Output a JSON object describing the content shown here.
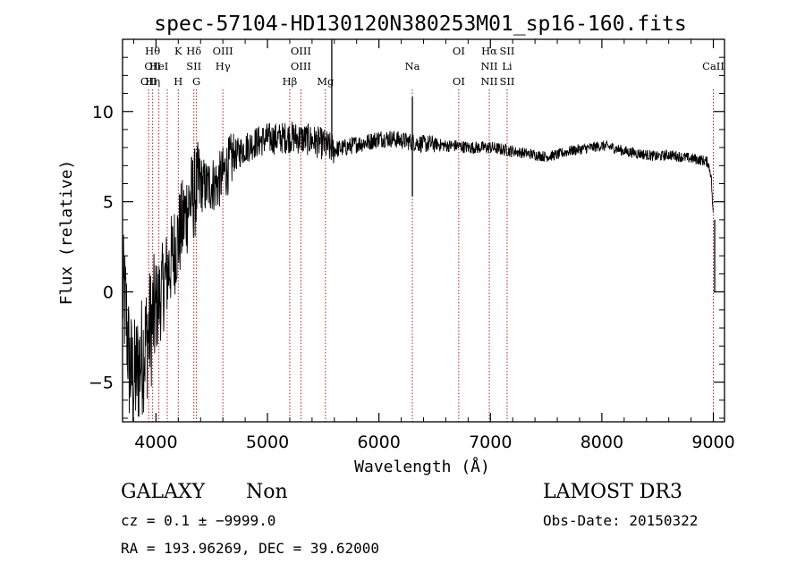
{
  "chart_data": {
    "type": "line",
    "title": "spec-57104-HD130120N380253M01_sp16-160.fits",
    "xlabel": "Wavelength (Å)",
    "ylabel": "Flux (relative)",
    "xlim": [
      3700,
      9100
    ],
    "ylim": [
      -7.2,
      14.0
    ],
    "x_ticks": [
      4000,
      5000,
      6000,
      7000,
      8000,
      9000
    ],
    "y_ticks": [
      -5,
      0,
      5,
      10
    ],
    "x_tick_labels": [
      "4000",
      "5000",
      "6000",
      "7000",
      "8000",
      "9000"
    ],
    "y_tick_labels": [
      "−5",
      "0",
      "5",
      "10"
    ],
    "line_color": "#000000",
    "marker_color": "#b02020",
    "series": [
      {
        "x": [
          3700,
          3730,
          3760,
          3800,
          3850,
          3900,
          3950,
          4000,
          4050,
          4100,
          4150,
          4200,
          4250,
          4300,
          4350,
          4400,
          4450,
          4500,
          4550,
          4600,
          4650,
          4700,
          4800,
          4900,
          5000,
          5100,
          5200,
          5300,
          5400,
          5500,
          5550,
          5600,
          5700,
          5800,
          5900,
          6000,
          6100,
          6200,
          6300,
          6400,
          6500,
          6600,
          6700,
          6800,
          6900,
          7000,
          7100,
          7200,
          7300,
          7400,
          7500,
          7600,
          7700,
          7800,
          7900,
          8000,
          8100,
          8200,
          8300,
          8400,
          8500,
          8600,
          8700,
          8800,
          8900,
          8950,
          8980,
          9000
        ],
        "y": [
          0,
          -1,
          -4,
          -5,
          -4,
          -3,
          -2,
          -1,
          0,
          1,
          2,
          3,
          4,
          5,
          5.5,
          6,
          5.8,
          6,
          6,
          6.5,
          7,
          7.5,
          8,
          8.3,
          8.5,
          8.5,
          8.6,
          8.5,
          8.4,
          8.2,
          8,
          7.9,
          8,
          8.2,
          8.3,
          8.5,
          8.5,
          8.4,
          8.3,
          8.2,
          8.2,
          8.1,
          8.1,
          8,
          8,
          8,
          7.9,
          7.8,
          7.7,
          7.6,
          7.5,
          7.6,
          7.8,
          7.9,
          8,
          8.1,
          8,
          7.8,
          7.7,
          7.6,
          7.5,
          7.6,
          7.5,
          7.4,
          7.3,
          7.2,
          6.5,
          4
        ]
      }
    ],
    "spikes": [
      {
        "x": 5577,
        "y": 14.0
      },
      {
        "x": 6300,
        "y": 10.8
      },
      {
        "x": 6300,
        "y": 5.3
      },
      {
        "x": 9012,
        "y": 0.0
      }
    ],
    "line_markers": [
      {
        "x": 3934,
        "labels": [
          "",
          "",
          "OII"
        ]
      },
      {
        "x": 3970,
        "labels": [
          "Hθ",
          "OII",
          "Hη"
        ]
      },
      {
        "x": 4026,
        "labels": [
          "",
          "HeI",
          ""
        ]
      },
      {
        "x": 4101,
        "labels": [
          "",
          "",
          ""
        ]
      },
      {
        "x": 4200,
        "labels": [
          "K",
          "",
          "H"
        ]
      },
      {
        "x": 4340,
        "labels": [
          "Hδ",
          "SII",
          ""
        ]
      },
      {
        "x": 4363,
        "labels": [
          "",
          "",
          "G"
        ]
      },
      {
        "x": 4600,
        "labels": [
          "OIII",
          "Hγ",
          ""
        ]
      },
      {
        "x": 5200,
        "labels": [
          "",
          "",
          "Hβ"
        ]
      },
      {
        "x": 5300,
        "labels": [
          "OIII",
          "OIII",
          ""
        ]
      },
      {
        "x": 5520,
        "labels": [
          "",
          "",
          "Mg"
        ]
      },
      {
        "x": 6300,
        "labels": [
          "",
          "Na",
          ""
        ]
      },
      {
        "x": 6716,
        "labels": [
          "OI",
          "",
          "OI"
        ]
      },
      {
        "x": 6990,
        "labels": [
          "Hα",
          "NII",
          "NII"
        ]
      },
      {
        "x": 7150,
        "labels": [
          "SII",
          "Li",
          "SII"
        ]
      },
      {
        "x": 9000,
        "labels": [
          "",
          "CaII",
          ""
        ]
      }
    ]
  },
  "footer": {
    "class_label": "GALAXY",
    "subclass_label": "Non",
    "survey": "LAMOST DR3",
    "cz_line": "cz = 0.1 ± −9999.0",
    "obs_date": "Obs-Date: 20150322",
    "coords": "RA = 193.96269, DEC =  39.62000"
  }
}
